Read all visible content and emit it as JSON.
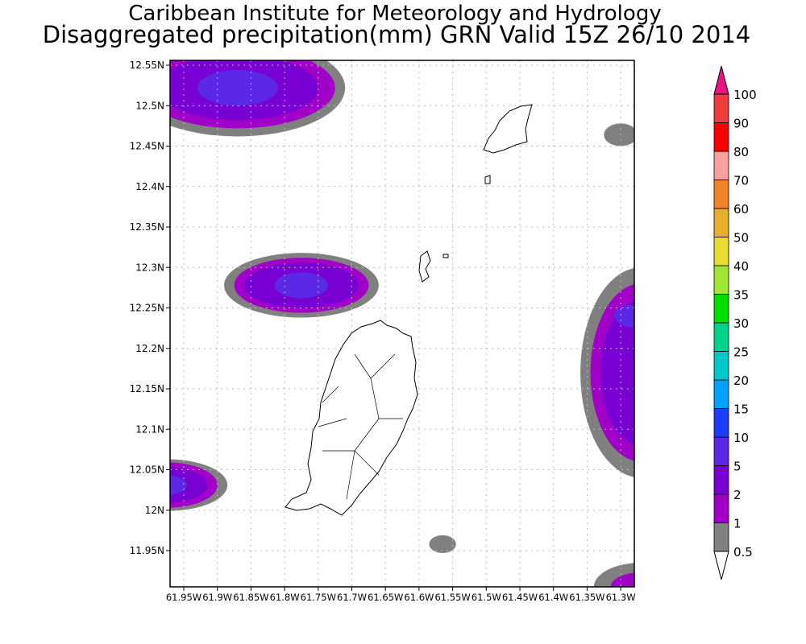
{
  "header": {
    "title_line1": "Caribbean Institute for Meteorology and Hydrology",
    "title_line2": "Disaggregated precipitation(mm) GRN Valid 15Z 26/10 2014"
  },
  "chart_data": {
    "type": "map-contour",
    "title": "Disaggregated precipitation(mm) GRN Valid 15Z 26/10 2014",
    "lon_range": [
      -61.97,
      -61.28
    ],
    "lat_range": [
      11.91,
      12.56
    ],
    "lon_ticks": [
      "61.95W",
      "61.9W",
      "61.85W",
      "61.8W",
      "61.75W",
      "61.7W",
      "61.65W",
      "61.6W",
      "61.55W",
      "61.5W",
      "61.45W",
      "61.4W",
      "61.35W",
      "61.3W"
    ],
    "lat_ticks": [
      "12.55N",
      "12.5N",
      "12.45N",
      "12.4N",
      "12.35N",
      "12.3N",
      "12.25N",
      "12.2N",
      "12.15N",
      "12.1N",
      "12.05N",
      "12N",
      "11.95N"
    ],
    "grid": true,
    "colorbar": {
      "levels": [
        "0.5",
        "1",
        "2",
        "5",
        "10",
        "15",
        "20",
        "25",
        "30",
        "35",
        "40",
        "50",
        "60",
        "70",
        "80",
        "90",
        "100"
      ],
      "colors": [
        "#808080",
        "#a000c8",
        "#7800d2",
        "#5a28e6",
        "#1e3cff",
        "#00a0ff",
        "#00c8c8",
        "#00d28c",
        "#00dc00",
        "#a0e632",
        "#e6dc32",
        "#e6af2d",
        "#f08228",
        "#f8a0a0",
        "#fa0000",
        "#f03c3c"
      ],
      "over_color": "#e8147f",
      "under_color": "#ffffff"
    },
    "precip_cells": [
      {
        "lon": -61.87,
        "lat": 12.522,
        "layers": [
          {
            "level": "0.5",
            "rx": 0.16,
            "ry": 0.06
          },
          {
            "level": "1",
            "rx": 0.145,
            "ry": 0.05
          },
          {
            "level": "2",
            "rx": 0.12,
            "ry": 0.04
          },
          {
            "level": "5",
            "rx": 0.06,
            "ry": 0.022
          }
        ]
      },
      {
        "lon": -61.775,
        "lat": 12.278,
        "layers": [
          {
            "level": "0.5",
            "rx": 0.115,
            "ry": 0.04
          },
          {
            "level": "1",
            "rx": 0.1,
            "ry": 0.034
          },
          {
            "level": "2",
            "rx": 0.085,
            "ry": 0.028
          },
          {
            "level": "5",
            "rx": 0.04,
            "ry": 0.016
          }
        ]
      },
      {
        "lon": -61.975,
        "lat": 12.031,
        "layers": [
          {
            "level": "0.5",
            "rx": 0.09,
            "ry": 0.032
          },
          {
            "level": "1",
            "rx": 0.075,
            "ry": 0.028
          },
          {
            "level": "2",
            "rx": 0.06,
            "ry": 0.022
          },
          {
            "level": "5",
            "rx": 0.03,
            "ry": 0.012
          }
        ]
      },
      {
        "lon": -61.27,
        "lat": 12.17,
        "layers": [
          {
            "level": "0.5",
            "rx": 0.09,
            "ry": 0.13
          },
          {
            "level": "1",
            "rx": 0.075,
            "ry": 0.11
          },
          {
            "level": "2",
            "rx": 0.06,
            "ry": 0.09
          }
        ]
      },
      {
        "lon": -61.28,
        "lat": 12.24,
        "layers": [
          {
            "level": "5",
            "rx": 0.03,
            "ry": 0.014
          }
        ]
      },
      {
        "lon": -61.565,
        "lat": 11.958,
        "layers": [
          {
            "level": "0.5",
            "rx": 0.02,
            "ry": 0.011
          }
        ]
      },
      {
        "lon": -61.3,
        "lat": 12.464,
        "layers": [
          {
            "level": "0.5",
            "rx": 0.025,
            "ry": 0.014
          }
        ]
      },
      {
        "lon": -61.27,
        "lat": 11.905,
        "layers": [
          {
            "level": "0.5",
            "rx": 0.07,
            "ry": 0.03
          },
          {
            "level": "1",
            "rx": 0.045,
            "ry": 0.018
          }
        ]
      }
    ]
  }
}
